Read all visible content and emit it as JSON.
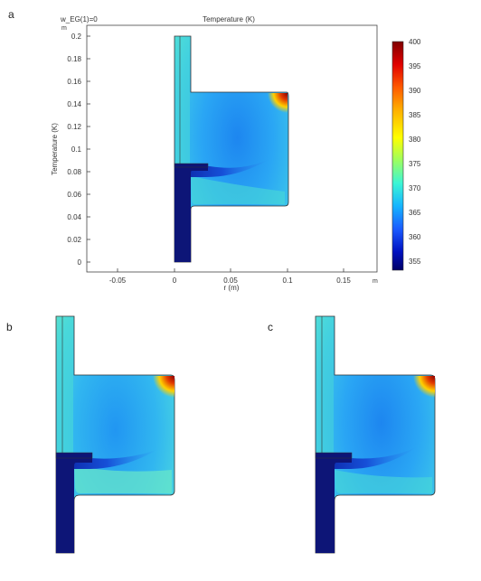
{
  "panels": {
    "a": {
      "letter": "a",
      "param_label": "w_EG(1)=0",
      "title": "Temperature (K)",
      "unit_m_top": "m",
      "unit_m_right": "m",
      "ylabel": "Temperature (K)",
      "xlabel": "r (m)",
      "xticks": [
        "-0.05",
        "0",
        "0.05",
        "0.1",
        "0.15"
      ],
      "yticks": [
        "0",
        "0.02",
        "0.04",
        "0.06",
        "0.08",
        "0.1",
        "0.12",
        "0.14",
        "0.16",
        "0.18",
        "0.2"
      ]
    },
    "b": {
      "letter": "b"
    },
    "c": {
      "letter": "c"
    }
  },
  "colorbar": {
    "ticks": [
      "400",
      "395",
      "390",
      "385",
      "380",
      "375",
      "370",
      "365",
      "360",
      "355"
    ],
    "colors": [
      "#7f0000",
      "#e00000",
      "#ff5a00",
      "#ffb000",
      "#ffff00",
      "#9cff60",
      "#3cf5d5",
      "#15b4ff",
      "#1a5bff",
      "#0010c0",
      "#000066"
    ]
  },
  "field_colors": {
    "solid": "#0d1577",
    "cold_core": "#1d86f0",
    "warm_band": "#49dad6",
    "hot_corner": "#e23b00",
    "background_fluid": "#41cde8"
  }
}
